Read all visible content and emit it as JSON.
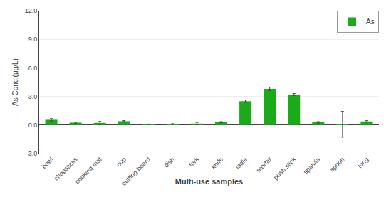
{
  "chart_data": {
    "type": "bar",
    "xlabel": "Multi-use samples",
    "ylabel": "As Conc.(μg/L)",
    "categories": [
      "bowl",
      "chopsticks",
      "cooking mat",
      "cup",
      "cutting board",
      "dish",
      "fork",
      "knife",
      "ladle",
      "mortar",
      "push stick",
      "spatula",
      "spoon",
      "tong"
    ],
    "series": [
      {
        "name": "As",
        "color": "#1aaa1a",
        "values": [
          0.55,
          0.25,
          0.22,
          0.4,
          0.07,
          0.1,
          0.15,
          0.3,
          2.5,
          3.8,
          3.2,
          0.28,
          0.08,
          0.38
        ],
        "errors": [
          0.12,
          0.06,
          0.15,
          0.06,
          0.03,
          0.04,
          0.12,
          0.06,
          0.12,
          0.18,
          0.1,
          0.08,
          1.35,
          0.08
        ]
      }
    ],
    "ylim": [
      -3.0,
      12.0
    ],
    "yticks": [
      {
        "value": -3.0,
        "label": "-3.0"
      },
      {
        "value": 0.0,
        "label": "0.0"
      },
      {
        "value": 3.0,
        "label": "3.0"
      },
      {
        "value": 6.0,
        "label": "6.0"
      },
      {
        "value": 9.0,
        "label": "9.0"
      },
      {
        "value": 12.0,
        "label": "12.0"
      }
    ],
    "grid": true,
    "legend": "upper right"
  }
}
